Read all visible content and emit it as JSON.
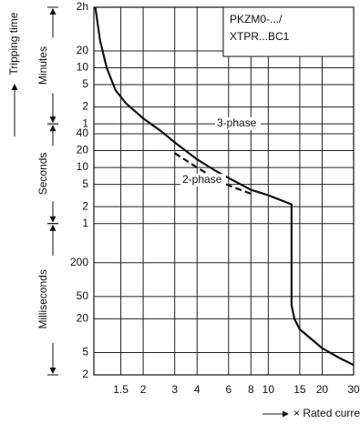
{
  "chart_data": {
    "type": "line",
    "y_label": "Tripping time",
    "x_label": "× Rated current",
    "annotation": [
      "PKZM0-.../",
      "XTPR...BC1"
    ],
    "y_ranges": [
      {
        "label": "Minutes",
        "from": 0,
        "to": 5
      },
      {
        "label": "Seconds",
        "from": 5,
        "to": 11
      },
      {
        "label": "Milliseconds",
        "from": 11,
        "to": 16
      }
    ],
    "xscale": "log",
    "yscale": "log",
    "xlim": [
      1.06,
      30
    ],
    "ylim": [
      0.002,
      7200
    ],
    "xticks": [
      1.5,
      2,
      3,
      4,
      6,
      8,
      10,
      15,
      20,
      30
    ],
    "yticks": [
      {
        "value": 7200,
        "label": "2h"
      },
      {
        "value": 1200,
        "label": "20"
      },
      {
        "value": 600,
        "label": "10"
      },
      {
        "value": 300,
        "label": "5"
      },
      {
        "value": 120,
        "label": "2"
      },
      {
        "value": 60,
        "label": "1"
      },
      40,
      20,
      10,
      5,
      2,
      1,
      {
        "value": 0.2,
        "label": "200"
      },
      {
        "value": 0.05,
        "label": "50"
      },
      {
        "value": 0.02,
        "label": "20"
      },
      {
        "value": 0.005,
        "label": "5"
      },
      {
        "value": 0.002,
        "label": "2"
      }
    ],
    "grid": true,
    "series": [
      {
        "name": "3-phase",
        "color": "#111111",
        "dash": false,
        "x": [
          1.08,
          1.15,
          1.25,
          1.4,
          1.6,
          2,
          2.5,
          3,
          4,
          5,
          6,
          8,
          10,
          13.5,
          13.5,
          14,
          15,
          20,
          25,
          30
        ],
        "values": [
          7200,
          1800,
          600,
          240,
          140,
          75,
          45,
          28,
          14,
          9,
          6.5,
          4,
          3.2,
          2.2,
          0.035,
          0.02,
          0.013,
          0.006,
          0.004,
          0.003
        ]
      },
      {
        "name": "2-phase",
        "color": "#111111",
        "dash": true,
        "x": [
          3,
          4,
          5,
          6,
          8
        ],
        "values": [
          18,
          10,
          6.5,
          4.8,
          3.4
        ]
      }
    ]
  }
}
